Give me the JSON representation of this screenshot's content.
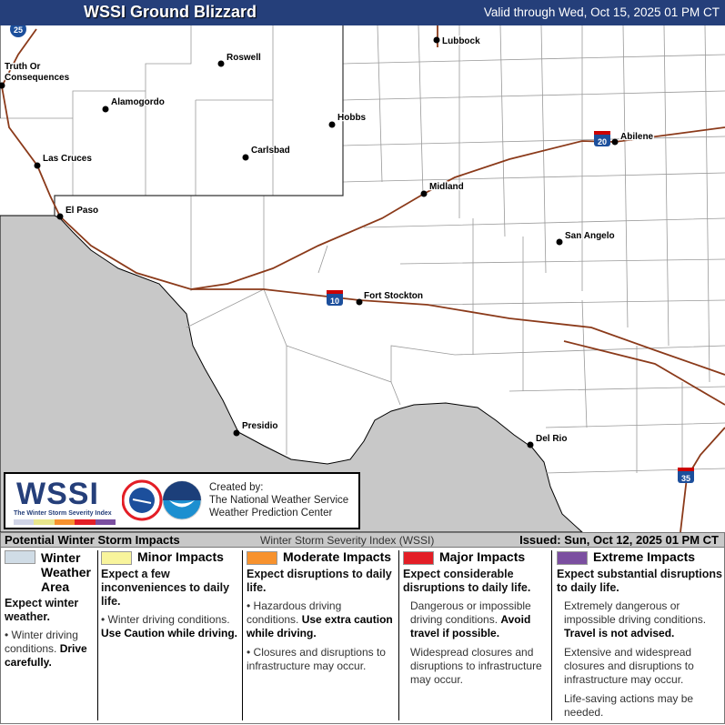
{
  "header": {
    "title": "WSSI Ground Blizzard",
    "valid": "Valid through Wed, Oct 15, 2025 01 PM CT"
  },
  "map": {
    "cities": [
      {
        "name": "Lubbock"
      },
      {
        "name": "Roswell"
      },
      {
        "name": "Truth Or"
      },
      {
        "name": "Consequences"
      },
      {
        "name": "Alamogordo"
      },
      {
        "name": "Hobbs"
      },
      {
        "name": "Carlsbad"
      },
      {
        "name": "Las Cruces"
      },
      {
        "name": "Abilene"
      },
      {
        "name": "Midland"
      },
      {
        "name": "El Paso"
      },
      {
        "name": "San Angelo"
      },
      {
        "name": "Fort Stockton"
      },
      {
        "name": "Presidio"
      },
      {
        "name": "Del Rio"
      }
    ],
    "interstates": [
      "25",
      "20",
      "10",
      "35"
    ],
    "colors": {
      "mexico": "#c8c8c8",
      "roads": "#8b3a1a",
      "shield": "#1c4f9c"
    }
  },
  "logo": {
    "wssi": "WSSI",
    "subtitle": "The Winter Storm Severity Index",
    "created": [
      "Created by:",
      "The National Weather Service",
      "Weather Prediction Center"
    ]
  },
  "legend_bar": {
    "title": "Potential Winter Storm Impacts",
    "index": "Winter Storm Severity Index (WSSI)",
    "issued": "Issued: Sun, Oct 12, 2025 01 PM CT"
  },
  "legend": [
    {
      "label": "Winter Weather Area",
      "color": "#d0dce6",
      "expect": "Expect winter weather.",
      "items": [
        {
          "text": "Winter driving conditions. ",
          "bold": "Drive carefully."
        }
      ]
    },
    {
      "label": "Minor Impacts",
      "color": "#f8f49c",
      "expect": "Expect a few inconveniences to daily life.",
      "items": [
        {
          "text": "Winter driving conditions. ",
          "bold": "Use Caution while driving."
        }
      ]
    },
    {
      "label": "Moderate Impacts",
      "color": "#f7922e",
      "expect": "Expect disruptions to daily life.",
      "items": [
        {
          "text": "Hazardous driving conditions. ",
          "bold": "Use extra caution while driving."
        },
        {
          "text": "Closures and disruptions to infrastructure may occur.",
          "bold": ""
        }
      ]
    },
    {
      "label": "Major Impacts",
      "color": "#e31e26",
      "expect": "Expect considerable disruptions to daily life.",
      "items": [
        {
          "text": "Dangerous or impossible driving conditions. ",
          "bold": "Avoid travel if possible."
        },
        {
          "text": "Widespread closures and disruptions to infrastructure may occur.",
          "bold": ""
        }
      ]
    },
    {
      "label": "Extreme Impacts",
      "color": "#7b4fa0",
      "expect": "Expect substantial disruptions to daily life.",
      "items": [
        {
          "text": "Extremely dangerous or impossible driving conditions. ",
          "bold": "Travel is not advised."
        },
        {
          "text": "Extensive and widespread closures and disruptions to infrastructure may occur.",
          "bold": ""
        },
        {
          "text": "Life-saving actions may be needed.",
          "bold": ""
        }
      ]
    }
  ]
}
